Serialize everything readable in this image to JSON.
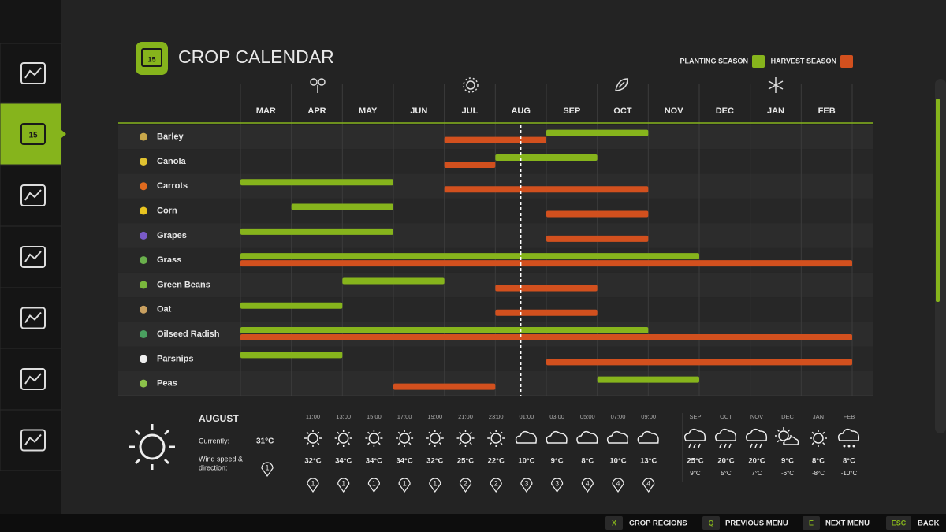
{
  "header": {
    "title": "CROP CALENDAR",
    "icon_day": "15"
  },
  "sidebar": {
    "active_day": "15"
  },
  "legend": {
    "planting": "PLANTING SEASON",
    "harvest": "HARVEST SEASON",
    "planting_color": "#86b41c",
    "harvest_color": "#d2501e"
  },
  "months": [
    "MAR",
    "APR",
    "MAY",
    "JUN",
    "JUL",
    "AUG",
    "SEP",
    "OCT",
    "NOV",
    "DEC",
    "JAN",
    "FEB"
  ],
  "today": 5.5,
  "crops": [
    {
      "name": "Barley",
      "plant": [
        6,
        8
      ],
      "harvest": [
        4,
        6
      ]
    },
    {
      "name": "Canola",
      "plant": [
        5,
        7
      ],
      "harvest": [
        4,
        5
      ]
    },
    {
      "name": "Carrots",
      "plant": [
        0,
        3
      ],
      "harvest": [
        4,
        8
      ]
    },
    {
      "name": "Corn",
      "plant": [
        1,
        3
      ],
      "harvest": [
        6,
        8
      ]
    },
    {
      "name": "Grapes",
      "plant": [
        0,
        3
      ],
      "harvest": [
        6,
        8
      ]
    },
    {
      "name": "Grass",
      "plant": [
        0,
        9
      ],
      "harvest": [
        0,
        12
      ]
    },
    {
      "name": "Green Beans",
      "plant": [
        2,
        4
      ],
      "harvest": [
        5,
        7
      ]
    },
    {
      "name": "Oat",
      "plant": [
        0,
        2
      ],
      "harvest": [
        5,
        7
      ]
    },
    {
      "name": "Oilseed Radish",
      "plant": [
        0,
        8
      ],
      "harvest": [
        0,
        12
      ]
    },
    {
      "name": "Parsnips",
      "plant": [
        0,
        2
      ],
      "harvest": [
        6,
        12
      ]
    },
    {
      "name": "Peas",
      "plant": [
        7,
        9
      ],
      "harvest": [
        3,
        5
      ]
    }
  ],
  "weather": {
    "month": "AUGUST",
    "current_label": "Currently:",
    "current_temp": "31°C",
    "wind_label": [
      "Wind speed &",
      "direction:"
    ],
    "current_wind": "1",
    "hourly": [
      {
        "time": "11:00",
        "icon": "sun",
        "temp": "32°C",
        "wind": "1"
      },
      {
        "time": "13:00",
        "icon": "sun",
        "temp": "34°C",
        "wind": "1"
      },
      {
        "time": "15:00",
        "icon": "sun",
        "temp": "34°C",
        "wind": "1"
      },
      {
        "time": "17:00",
        "icon": "sun",
        "temp": "34°C",
        "wind": "1"
      },
      {
        "time": "19:00",
        "icon": "sun",
        "temp": "32°C",
        "wind": "1"
      },
      {
        "time": "21:00",
        "icon": "sun",
        "temp": "25°C",
        "wind": "2"
      },
      {
        "time": "23:00",
        "icon": "sun",
        "temp": "22°C",
        "wind": "2"
      },
      {
        "time": "01:00",
        "icon": "cloud",
        "temp": "10°C",
        "wind": "3"
      },
      {
        "time": "03:00",
        "icon": "cloud",
        "temp": "9°C",
        "wind": "3"
      },
      {
        "time": "05:00",
        "icon": "cloud",
        "temp": "8°C",
        "wind": "4"
      },
      {
        "time": "07:00",
        "icon": "cloud",
        "temp": "10°C",
        "wind": "4"
      },
      {
        "time": "09:00",
        "icon": "cloud",
        "temp": "13°C",
        "wind": "4"
      }
    ],
    "forecast": [
      {
        "month": "SEP",
        "icon": "rain",
        "high": "25°C",
        "low": "9°C"
      },
      {
        "month": "OCT",
        "icon": "rain",
        "high": "20°C",
        "low": "5°C"
      },
      {
        "month": "NOV",
        "icon": "rain",
        "high": "20°C",
        "low": "7°C"
      },
      {
        "month": "DEC",
        "icon": "suncloud",
        "high": "9°C",
        "low": "-6°C"
      },
      {
        "month": "JAN",
        "icon": "sun",
        "high": "8°C",
        "low": "-8°C"
      },
      {
        "month": "FEB",
        "icon": "snow",
        "high": "8°C",
        "low": "-10°C"
      }
    ]
  },
  "footer": {
    "keys": [
      {
        "key": "X",
        "label": "CROP REGIONS"
      },
      {
        "key": "Q",
        "label": "PREVIOUS MENU"
      },
      {
        "key": "E",
        "label": "NEXT MENU"
      },
      {
        "key": "ESC",
        "label": "BACK"
      }
    ]
  }
}
